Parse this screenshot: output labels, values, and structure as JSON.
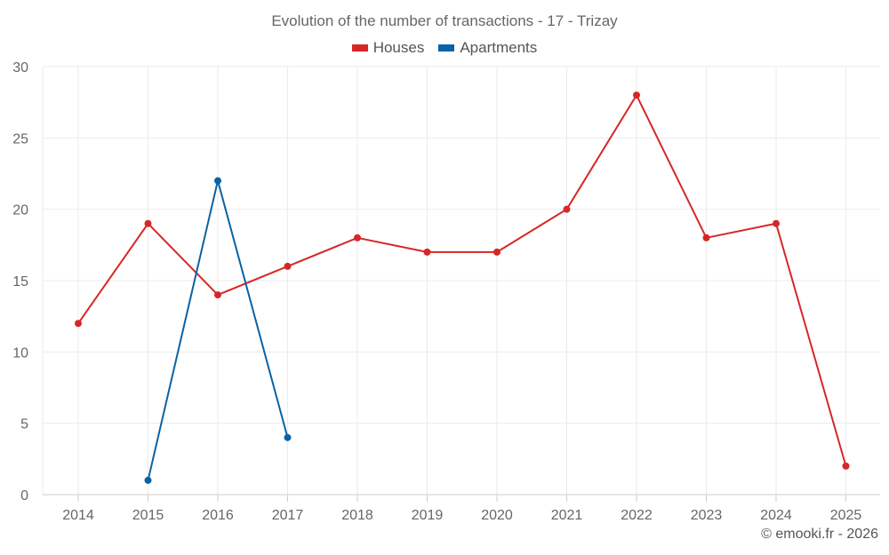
{
  "chart_data": {
    "type": "line",
    "title": "Evolution of the number of transactions - 17 - Trizay",
    "categories": [
      "2014",
      "2015",
      "2016",
      "2017",
      "2018",
      "2019",
      "2020",
      "2021",
      "2022",
      "2023",
      "2024",
      "2025"
    ],
    "ylim": [
      0,
      30
    ],
    "yticks": [
      0,
      5,
      10,
      15,
      20,
      25,
      30
    ],
    "grid": true,
    "legend_position": "top-center",
    "series": [
      {
        "name": "Houses",
        "color": "#d62728",
        "values": [
          12,
          19,
          14,
          16,
          18,
          17,
          17,
          20,
          28,
          18,
          19,
          2
        ]
      },
      {
        "name": "Apartments",
        "color": "#0b62a4",
        "values": [
          null,
          1,
          22,
          4,
          null,
          null,
          null,
          null,
          null,
          null,
          null,
          null
        ]
      }
    ]
  },
  "credit": "© emooki.fr - 2026"
}
